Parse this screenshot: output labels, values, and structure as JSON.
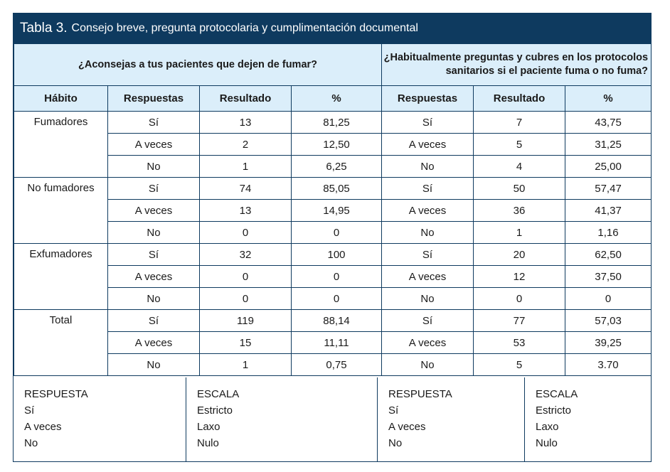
{
  "title": {
    "lead": "Tabla 3.",
    "rest": "Consejo breve, pregunta protocolaria y cumplimentación documental"
  },
  "questions": {
    "q1": "¿Aconsejas a tus pacientes que dejen de fumar?",
    "q2_line1": "¿Habitualmente preguntas y cubres en los protocolos",
    "q2_line2": "sanitarios si el paciente fuma o no fuma?"
  },
  "headers": {
    "habito": "Hábito",
    "respuestas": "Respuestas",
    "resultado": "Resultado",
    "pct": "%"
  },
  "groups": [
    {
      "name": "Fumadores",
      "rows": [
        {
          "r1": "Sí",
          "v1": "13",
          "p1": "81,25",
          "r2": "Sí",
          "v2": "7",
          "p2": "43,75"
        },
        {
          "r1": "A veces",
          "v1": "2",
          "p1": "12,50",
          "r2": "A veces",
          "v2": "5",
          "p2": "31,25"
        },
        {
          "r1": "No",
          "v1": "1",
          "p1": "6,25",
          "r2": "No",
          "v2": "4",
          "p2": "25,00"
        }
      ]
    },
    {
      "name": "No fumadores",
      "rows": [
        {
          "r1": "Sí",
          "v1": "74",
          "p1": "85,05",
          "r2": "Sí",
          "v2": "50",
          "p2": "57,47"
        },
        {
          "r1": "A veces",
          "v1": "13",
          "p1": "14,95",
          "r2": "A veces",
          "v2": "36",
          "p2": "41,37"
        },
        {
          "r1": "No",
          "v1": "0",
          "p1": "0",
          "r2": "No",
          "v2": "1",
          "p2": "1,16"
        }
      ]
    },
    {
      "name": "Exfumadores",
      "rows": [
        {
          "r1": "Sí",
          "v1": "32",
          "p1": "100",
          "r2": "Sí",
          "v2": "20",
          "p2": "62,50"
        },
        {
          "r1": "A veces",
          "v1": "0",
          "p1": "0",
          "r2": "A veces",
          "v2": "12",
          "p2": "37,50"
        },
        {
          "r1": "No",
          "v1": "0",
          "p1": "0",
          "r2": "No",
          "v2": "0",
          "p2": "0"
        }
      ]
    },
    {
      "name": "Total",
      "rows": [
        {
          "r1": "Sí",
          "v1": "119",
          "p1": "88,14",
          "r2": "Sí",
          "v2": "77",
          "p2": "57,03"
        },
        {
          "r1": "A veces",
          "v1": "15",
          "p1": "11,11",
          "r2": "A veces",
          "v2": "53",
          "p2": "39,25"
        },
        {
          "r1": "No",
          "v1": "1",
          "p1": "0,75",
          "r2": "No",
          "v2": "5",
          "p2": "3.70"
        }
      ]
    }
  ],
  "legend": {
    "left_respuesta": {
      "title": "RESPUESTA",
      "items": [
        "Sí",
        "A veces",
        "No"
      ]
    },
    "left_escala": {
      "title": "ESCALA",
      "items": [
        "Estricto",
        "Laxo",
        "Nulo"
      ]
    },
    "right_respuesta": {
      "title": "RESPUESTA",
      "items": [
        "Sí",
        "A veces",
        "No"
      ]
    },
    "right_escala": {
      "title": "ESCALA",
      "items": [
        "Estricto",
        "Laxo",
        "Nulo"
      ]
    }
  },
  "colors": {
    "navy": "#0e3a5f",
    "header_bg": "#dbeefa"
  }
}
